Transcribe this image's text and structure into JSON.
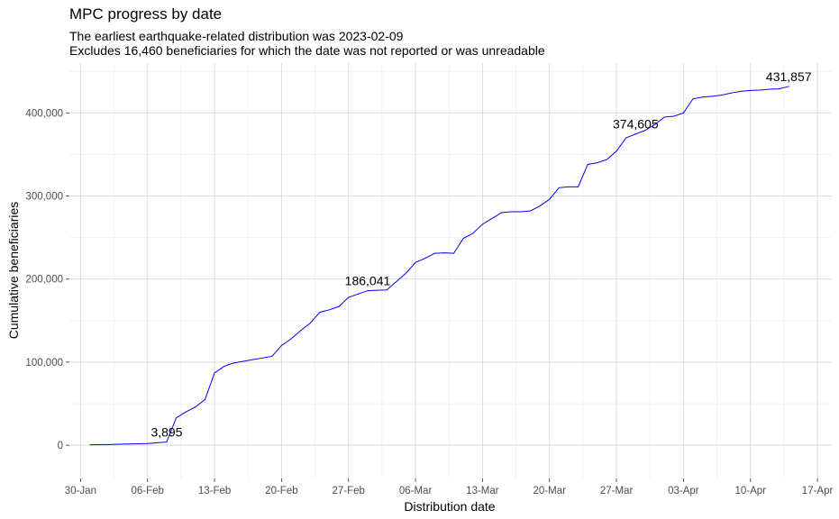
{
  "chart_data": {
    "type": "line",
    "title": "MPC progress by date",
    "subtitle_lines": [
      "The earliest earthquake-related distribution was 2023-02-09",
      "Excludes 16,460 beneficiaries for which the date was not reported or was unreadable"
    ],
    "xlabel": "Distribution date",
    "ylabel": "Cumulative beneficiaries",
    "x_tick_labels": [
      "30-Jan",
      "06-Feb",
      "13-Feb",
      "20-Feb",
      "27-Feb",
      "06-Mar",
      "13-Mar",
      "20-Mar",
      "27-Mar",
      "03-Apr",
      "10-Apr",
      "17-Apr"
    ],
    "x_ticks": [
      "2023-01-30",
      "2023-02-06",
      "2023-02-13",
      "2023-02-20",
      "2023-02-27",
      "2023-03-06",
      "2023-03-13",
      "2023-03-20",
      "2023-03-27",
      "2023-04-03",
      "2023-04-10",
      "2023-04-17"
    ],
    "xlim": [
      "2023-01-28T20:00",
      "2023-04-18T12:00"
    ],
    "y_ticks": [
      0,
      100000,
      200000,
      300000,
      400000
    ],
    "y_tick_labels": [
      "0",
      "100,000",
      "200,000",
      "300,000",
      "400,000"
    ],
    "ylim": [
      -40000,
      460000
    ],
    "grid": true,
    "line_color": "#0000ff",
    "x": [
      "2023-01-31",
      "2023-02-02",
      "2023-02-03",
      "2023-02-04",
      "2023-02-05",
      "2023-02-06",
      "2023-02-07",
      "2023-02-08",
      "2023-02-09",
      "2023-02-10",
      "2023-02-11",
      "2023-02-12",
      "2023-02-13",
      "2023-02-14",
      "2023-02-15",
      "2023-02-16",
      "2023-02-17",
      "2023-02-18",
      "2023-02-19",
      "2023-02-20",
      "2023-02-21",
      "2023-02-22",
      "2023-02-23",
      "2023-02-24",
      "2023-02-25",
      "2023-02-26",
      "2023-02-27",
      "2023-02-28",
      "2023-03-01",
      "2023-03-02",
      "2023-03-03",
      "2023-03-04",
      "2023-03-05",
      "2023-03-06",
      "2023-03-07",
      "2023-03-08",
      "2023-03-09",
      "2023-03-10",
      "2023-03-11",
      "2023-03-12",
      "2023-03-13",
      "2023-03-14",
      "2023-03-15",
      "2023-03-16",
      "2023-03-17",
      "2023-03-18",
      "2023-03-19",
      "2023-03-20",
      "2023-03-21",
      "2023-03-22",
      "2023-03-23",
      "2023-03-24",
      "2023-03-25",
      "2023-03-26",
      "2023-03-27",
      "2023-03-28",
      "2023-03-29",
      "2023-03-30",
      "2023-03-31",
      "2023-04-01",
      "2023-04-02",
      "2023-04-03",
      "2023-04-04",
      "2023-04-05",
      "2023-04-06",
      "2023-04-07",
      "2023-04-08",
      "2023-04-09",
      "2023-04-10",
      "2023-04-11",
      "2023-04-12",
      "2023-04-13",
      "2023-04-14"
    ],
    "y": [
      500,
      800,
      1200,
      1500,
      1800,
      2000,
      3000,
      3895,
      33000,
      40000,
      46000,
      55000,
      87000,
      95000,
      99000,
      101000,
      103000,
      105000,
      107000,
      120000,
      128000,
      138000,
      147000,
      160000,
      163000,
      167000,
      178000,
      182000,
      186041,
      186500,
      187000,
      197000,
      207000,
      220000,
      225000,
      231000,
      231500,
      231000,
      249000,
      255000,
      266000,
      273000,
      280000,
      281000,
      281000,
      282000,
      288000,
      296000,
      310000,
      311000,
      311000,
      338000,
      340000,
      344000,
      354000,
      370000,
      374605,
      379000,
      386000,
      395000,
      396000,
      400000,
      417000,
      419000,
      420000,
      421500,
      424000,
      426000,
      427000,
      427500,
      428500,
      429000,
      431857
    ],
    "annotations": [
      {
        "x": "2023-02-08",
        "y": 3895,
        "text": "3,895"
      },
      {
        "x": "2023-03-01",
        "y": 186041,
        "text": "186,041"
      },
      {
        "x": "2023-03-29",
        "y": 374605,
        "text": "374,605"
      },
      {
        "x": "2023-04-14",
        "y": 431857,
        "text": "431,857"
      }
    ]
  }
}
